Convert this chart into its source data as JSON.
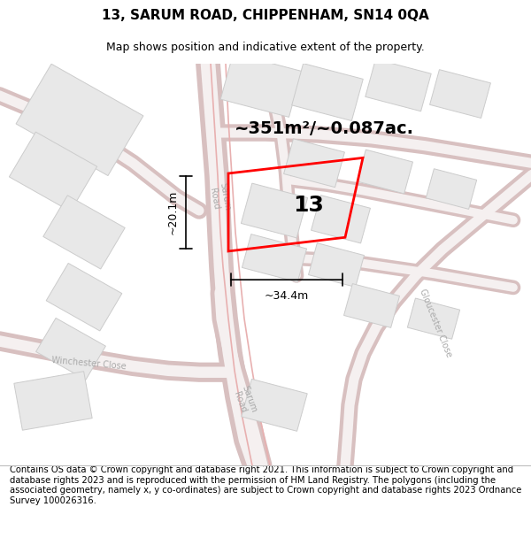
{
  "title": "13, SARUM ROAD, CHIPPENHAM, SN14 0QA",
  "subtitle": "Map shows position and indicative extent of the property.",
  "footer": "Contains OS data © Crown copyright and database right 2021. This information is subject to Crown copyright and database rights 2023 and is reproduced with the permission of HM Land Registry. The polygons (including the associated geometry, namely x, y co-ordinates) are subject to Crown copyright and database rights 2023 Ordnance Survey 100026316.",
  "bg_color": "#ffffff",
  "map_bg": "#ffffff",
  "road_fill": "#ffffff",
  "road_stroke": "#e8b0b0",
  "building_fill": "#e8e8e8",
  "building_stroke": "#cccccc",
  "plot_color": "#ff0000",
  "plot_label": "13",
  "area_text": "~351m²/~0.087ac.",
  "dim_width": "~34.4m",
  "dim_height": "~20.1m",
  "sarum_road_label": "Sarum\nRoad",
  "winchester_close_label": "Winchester Close",
  "gloucester_close_label": "Gloucester Close",
  "title_fontsize": 11,
  "subtitle_fontsize": 9,
  "footer_fontsize": 7.2,
  "area_fontsize": 14,
  "label_fontsize": 18,
  "road_label_fontsize": 7,
  "dim_fontsize": 9
}
